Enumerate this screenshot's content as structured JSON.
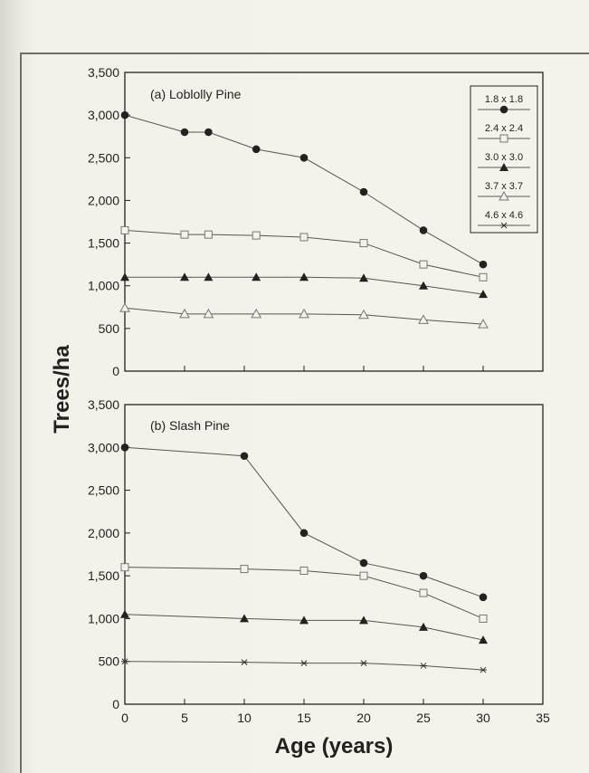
{
  "chart_data": [
    {
      "type": "line",
      "title": "(a) Loblolly Pine",
      "ylim": [
        0,
        3500
      ],
      "xlim": [
        0,
        35
      ],
      "yticks": [
        "0",
        "500",
        "1,000",
        "1,500",
        "2,000",
        "2,500",
        "3,000",
        "3,500"
      ],
      "xticks": [],
      "legend_placement": "top-right",
      "series": [
        {
          "name": "1.8 x 1.8",
          "marker": "filled-circle",
          "x": [
            0,
            5,
            7,
            11,
            15,
            20,
            25,
            30
          ],
          "y": [
            3000,
            2800,
            2800,
            2600,
            2500,
            2100,
            1650,
            1250
          ]
        },
        {
          "name": "2.4 x 2.4",
          "marker": "open-square",
          "x": [
            0,
            5,
            7,
            11,
            15,
            20,
            25,
            30
          ],
          "y": [
            1650,
            1600,
            1600,
            1590,
            1570,
            1500,
            1250,
            1100
          ]
        },
        {
          "name": "3.0 x 3.0",
          "marker": "filled-triangle",
          "x": [
            0,
            5,
            7,
            11,
            15,
            20,
            25,
            30
          ],
          "y": [
            1100,
            1100,
            1100,
            1100,
            1100,
            1090,
            1000,
            900
          ]
        },
        {
          "name": "3.7 x 3.7",
          "marker": "open-triangle",
          "x": [
            0,
            5,
            7,
            11,
            15,
            20,
            25,
            30
          ],
          "y": [
            740,
            670,
            670,
            670,
            670,
            660,
            600,
            550
          ]
        },
        {
          "name": "4.6 x 4.6",
          "marker": "asterisk",
          "x": [],
          "y": []
        }
      ]
    },
    {
      "type": "line",
      "title": "(b) Slash Pine",
      "ylim": [
        0,
        3500
      ],
      "xlim": [
        0,
        35
      ],
      "yticks": [
        "0",
        "500",
        "1,000",
        "1,500",
        "2,000",
        "2,500",
        "3,000",
        "3,500"
      ],
      "xticks": [
        "0",
        "5",
        "10",
        "15",
        "20",
        "25",
        "30",
        "35"
      ],
      "series": [
        {
          "name": "1.8 x 1.8",
          "marker": "filled-circle",
          "x": [
            0,
            10,
            15,
            20,
            25,
            30
          ],
          "y": [
            3000,
            2900,
            2000,
            1650,
            1500,
            1250
          ]
        },
        {
          "name": "2.4 x 2.4",
          "marker": "open-square",
          "x": [
            0,
            10,
            15,
            20,
            25,
            30
          ],
          "y": [
            1600,
            1580,
            1560,
            1500,
            1300,
            1000
          ]
        },
        {
          "name": "3.0 x 3.0",
          "marker": "filled-triangle",
          "x": [
            0,
            10,
            15,
            20,
            25,
            30
          ],
          "y": [
            1050,
            1000,
            980,
            980,
            900,
            750
          ]
        },
        {
          "name": "4.6 x 4.6",
          "marker": "asterisk",
          "x": [
            0,
            10,
            15,
            20,
            25,
            30
          ],
          "y": [
            500,
            490,
            480,
            480,
            450,
            400
          ]
        }
      ]
    }
  ],
  "axes": {
    "ylabel": "Trees/ha",
    "xlabel": "Age (years)"
  },
  "colors": {
    "ink": "#222222",
    "line": "#555555",
    "open_marker": "#777777",
    "background": "#f5f2eb"
  }
}
